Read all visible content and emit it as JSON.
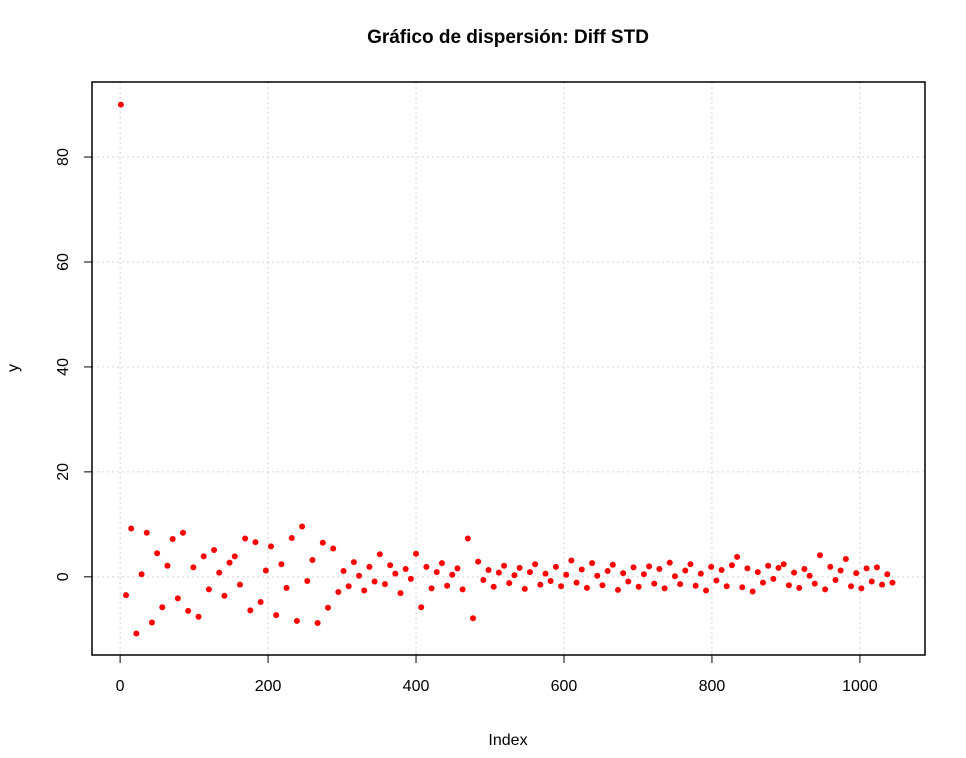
{
  "chart_data": {
    "type": "scatter",
    "title": "Gráfico de dispersión: Diff STD",
    "x_label": "Index",
    "y_label": "y",
    "color": "#ff0000",
    "grid": true,
    "xlim": [
      -38,
      1088
    ],
    "ylim": [
      -14.9,
      94.3
    ],
    "xticks": [
      0,
      200,
      400,
      600,
      800,
      1000
    ],
    "yticks": [
      0,
      20,
      40,
      60,
      80
    ],
    "x": [
      1,
      8,
      15,
      22,
      29,
      36,
      43,
      50,
      57,
      64,
      71,
      78,
      85,
      92,
      99,
      106,
      113,
      120,
      127,
      134,
      141,
      148,
      155,
      162,
      169,
      176,
      183,
      190,
      197,
      204,
      211,
      218,
      225,
      232,
      239,
      246,
      253,
      260,
      267,
      274,
      281,
      288,
      295,
      302,
      309,
      316,
      323,
      330,
      337,
      344,
      351,
      358,
      365,
      372,
      379,
      386,
      393,
      400,
      407,
      414,
      421,
      428,
      435,
      442,
      449,
      456,
      463,
      470,
      477,
      484,
      491,
      498,
      505,
      512,
      519,
      526,
      533,
      540,
      547,
      554,
      561,
      568,
      575,
      582,
      589,
      596,
      603,
      610,
      617,
      624,
      631,
      638,
      645,
      652,
      659,
      666,
      673,
      680,
      687,
      694,
      701,
      708,
      715,
      722,
      729,
      736,
      743,
      750,
      757,
      764,
      771,
      778,
      785,
      792,
      799,
      806,
      813,
      820,
      827,
      834,
      841,
      848,
      855,
      862,
      869,
      876,
      883,
      890,
      897,
      904,
      911,
      918,
      925,
      932,
      939,
      946,
      953,
      960,
      967,
      974,
      981,
      988,
      995,
      1002,
      1009,
      1016,
      1023,
      1030,
      1037,
      1044
    ],
    "values": [
      90,
      -3.5,
      9.2,
      -10.8,
      0.5,
      8.4,
      -8.7,
      4.5,
      -5.8,
      2.1,
      7.2,
      -4.1,
      8.4,
      -6.5,
      1.8,
      -7.6,
      3.9,
      -2.4,
      5.1,
      0.8,
      -3.6,
      2.7,
      3.9,
      -1.5,
      7.3,
      -6.4,
      6.6,
      -4.8,
      1.2,
      5.8,
      -7.3,
      2.4,
      -2.1,
      7.4,
      -8.4,
      9.6,
      -0.8,
      3.2,
      -8.8,
      6.5,
      -5.9,
      5.4,
      -2.9,
      1.1,
      -1.8,
      2.8,
      0.2,
      -2.6,
      1.9,
      -0.9,
      4.3,
      -1.4,
      2.2,
      0.6,
      -3.1,
      1.5,
      -0.4,
      4.4,
      -5.8,
      1.9,
      -2.2,
      0.9,
      2.6,
      -1.7,
      0.4,
      1.6,
      -2.4,
      7.3,
      -7.9,
      2.9,
      -0.6,
      1.3,
      -1.9,
      0.8,
      2.1,
      -1.2,
      0.3,
      1.7,
      -2.3,
      0.9,
      2.4,
      -1.5,
      0.6,
      -0.8,
      1.9,
      -1.8,
      0.4,
      3.1,
      -1.1,
      1.4,
      -2.1,
      2.6,
      0.2,
      -1.6,
      1.1,
      2.3,
      -2.5,
      0.7,
      -0.9,
      1.8,
      -1.9,
      0.5,
      2.0,
      -1.3,
      1.5,
      -2.2,
      2.7,
      0.1,
      -1.4,
      1.2,
      2.4,
      -1.7,
      0.6,
      -2.6,
      1.9,
      -0.7,
      1.3,
      -1.8,
      2.2,
      3.8,
      -2.0,
      1.6,
      -2.8,
      0.9,
      -1.1,
      2.1,
      -0.4,
      1.7,
      2.4,
      -1.6,
      0.8,
      -2.1,
      1.5,
      0.2,
      -1.3,
      4.1,
      -2.4,
      1.9,
      -0.6,
      1.2,
      3.4,
      -1.8,
      0.7,
      -2.2,
      1.6,
      -0.9,
      1.8,
      -1.5,
      0.5,
      -1.1
    ]
  }
}
